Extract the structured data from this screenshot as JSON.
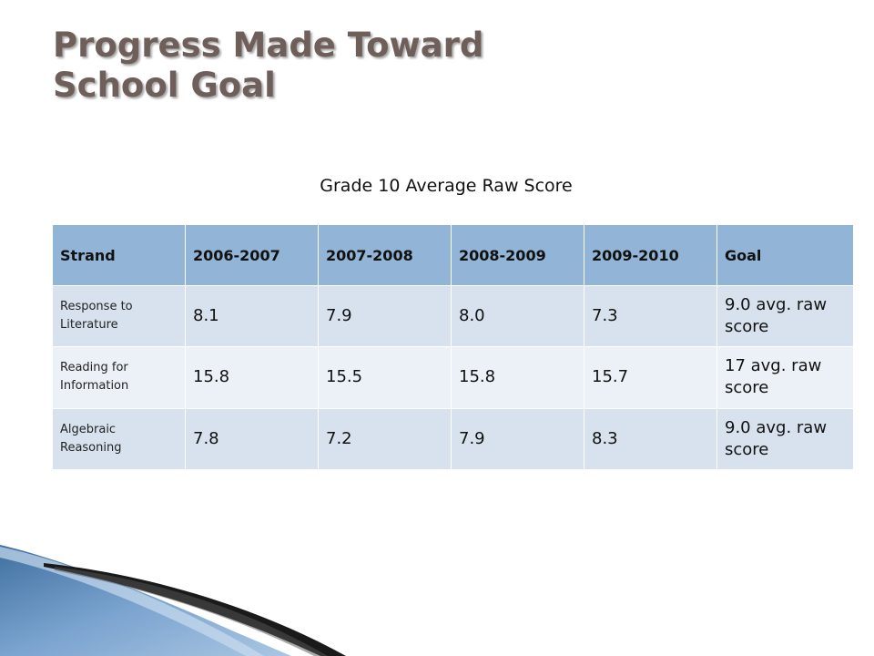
{
  "title": {
    "line1": "Progress Made Toward",
    "line2": "School Goal"
  },
  "subtitle": "Grade 10 Average Raw Score",
  "table": {
    "headers": [
      "Strand",
      "2006-2007",
      "2007-2008",
      "2008-2009",
      "2009-2010",
      "Goal"
    ],
    "rows": [
      {
        "strand": "Response to Literature",
        "values": [
          "8.1",
          "7.9",
          "8.0",
          "7.3"
        ],
        "goal": "9.0 avg. raw score"
      },
      {
        "strand": "Reading for Information",
        "values": [
          "15.8",
          "15.5",
          "15.8",
          "15.7"
        ],
        "goal": "17 avg. raw score"
      },
      {
        "strand": "Algebraic Reasoning",
        "values": [
          "7.8",
          "7.2",
          "7.9",
          "8.3"
        ],
        "goal": "9.0 avg. raw score"
      }
    ]
  },
  "colors": {
    "title": "#6f5f5b",
    "header_bg": "#92b4d6",
    "row_dark": "#d7e2ee",
    "row_light": "#ecf1f7",
    "ribbon_blue": "#5a86b8",
    "ribbon_dark": "#1a1a1a"
  }
}
